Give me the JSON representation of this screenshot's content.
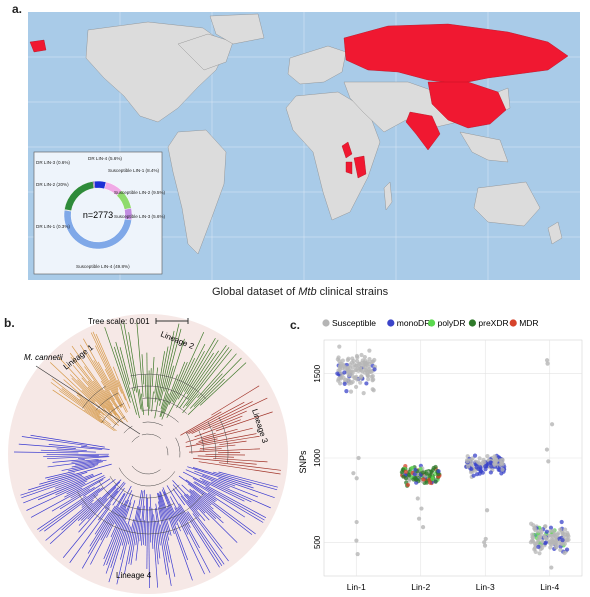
{
  "panel_a": {
    "label": "a.",
    "caption_prefix": "Global dataset of ",
    "caption_italic": "Mtb",
    "caption_suffix": " clinical strains",
    "ocean_color": "#a9cbe8",
    "land_color": "#dcdcdc",
    "highlight_color": "#f01831",
    "donut": {
      "total_label": "n=2773",
      "segments": [
        {
          "text": "Susceptible LIN-1 (8.4%)",
          "value": 8.4,
          "color": "#f0a9e6"
        },
        {
          "text": "Susceptible LIN-2 (9.5%)",
          "value": 9.5,
          "color": "#8fdb6c"
        },
        {
          "text": "Susceptible LIN-3 (5.6%)",
          "value": 5.6,
          "color": "#c08be0"
        },
        {
          "text": "Susceptible LIN-4 (49.8%)",
          "value": 49.8,
          "color": "#7fa8e8"
        },
        {
          "text": "DR LIN-1 (0.3%)",
          "value": 0.3,
          "color": "#666666"
        },
        {
          "text": "DR LIN-2 (20%)",
          "value": 20.0,
          "color": "#2e8b3a"
        },
        {
          "text": "DR LIN-3 (0.6%)",
          "value": 0.6,
          "color": "#7a2a8a"
        },
        {
          "text": "DR LIN-4 (5.6%)",
          "value": 5.6,
          "color": "#1c2fd6"
        }
      ]
    }
  },
  "panel_b": {
    "label": "b.",
    "tree_scale": "Tree scale: 0.001",
    "outgroup": "M. cannetii",
    "lineages": [
      {
        "name": "Lineage 1",
        "color": "#d69a4a"
      },
      {
        "name": "Lineage 2",
        "color": "#3f7a2a"
      },
      {
        "name": "Lineage 3",
        "color": "#a2342a"
      },
      {
        "name": "Lineage 4",
        "color": "#3a3ad0"
      }
    ]
  },
  "panel_c": {
    "label": "c.",
    "legend": [
      {
        "name": "Susceptible",
        "color": "#b5b5b5"
      },
      {
        "name": "monoDR",
        "color": "#3b44c9"
      },
      {
        "name": "polyDR",
        "color": "#5bd94f"
      },
      {
        "name": "preXDR",
        "color": "#2f7a2a"
      },
      {
        "name": "MDR",
        "color": "#d6432b"
      }
    ],
    "chart_data": {
      "type": "scatter",
      "xlabel": "",
      "ylabel": "SNPs",
      "categories": [
        "Lin-1",
        "Lin-2",
        "Lin-3",
        "Lin-4"
      ],
      "yticks": [
        500,
        1000,
        1500
      ],
      "ylim": [
        300,
        1700
      ],
      "grid": true,
      "groups": [
        {
          "category": "Lin-1",
          "center": 1510,
          "spread": 80,
          "outliers": [
            1000,
            910,
            880,
            620,
            510,
            430
          ]
        },
        {
          "category": "Lin-2",
          "center": 900,
          "spread": 35,
          "outliers": [
            760,
            700,
            640,
            590
          ]
        },
        {
          "category": "Lin-3",
          "center": 960,
          "spread": 40,
          "outliers": [
            520,
            500,
            480,
            690
          ]
        },
        {
          "category": "Lin-4",
          "center": 520,
          "spread": 60,
          "outliers": [
            1580,
            1560,
            1200,
            1050,
            980,
            350
          ]
        }
      ]
    }
  }
}
